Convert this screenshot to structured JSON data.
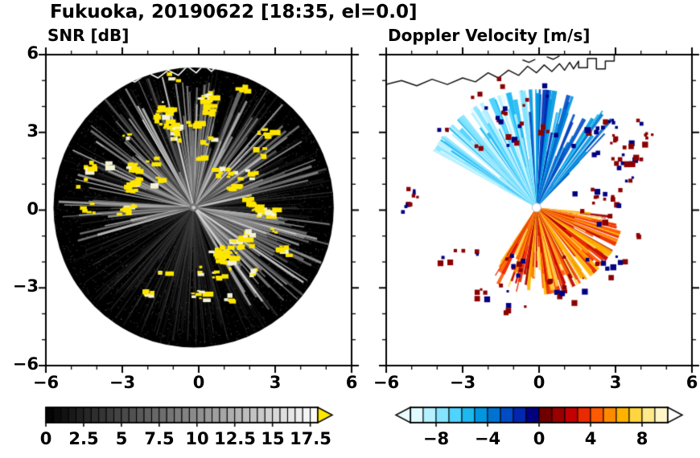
{
  "header": {
    "title": "Fukuoka, 20190622 [18:35, el=0.0]"
  },
  "panels": {
    "snr_subtitle": "SNR [dB]",
    "doppler_subtitle": "Doppler Velocity [m/s]"
  },
  "axes": {
    "x_tick_labels": [
      "−6",
      "−3",
      "0",
      "3",
      "6"
    ],
    "y_tick_labels": [
      "6",
      "3",
      "0",
      "−3",
      "−6"
    ],
    "xlim": [
      -6,
      6
    ],
    "ylim": [
      -6,
      6
    ]
  },
  "colorbars": {
    "snr": {
      "range": [
        0,
        18
      ],
      "segments": 36,
      "tick_labels": [
        "0",
        "2.5",
        "5",
        "7.5",
        "10",
        "12.5",
        "15",
        "17.5"
      ],
      "tick_values": [
        0,
        2.5,
        5,
        7.5,
        10,
        12.5,
        15,
        17.5
      ],
      "start_color": "#000000",
      "end_color": "#fafafa",
      "over_arrow_color": "#ffe600"
    },
    "doppler": {
      "range": [
        -10,
        10
      ],
      "tick_labels": [
        "−8",
        "−4",
        "0",
        "4",
        "8"
      ],
      "tick_values": [
        -8,
        -4,
        0,
        4,
        8
      ],
      "palette": [
        "#e0fbff",
        "#b4f0ff",
        "#84e4ff",
        "#4fd3ff",
        "#1db8f0",
        "#0096e0",
        "#0072d2",
        "#004cc4",
        "#0027ae",
        "#000080",
        "#700000",
        "#9a0000",
        "#c30000",
        "#ea2a00",
        "#ff5a00",
        "#ff8a00",
        "#ffb300",
        "#ffd640",
        "#ffe98a",
        "#fff6c8"
      ],
      "under_arrow_color": "#eafcff",
      "over_arrow_color": "#ffffff"
    }
  },
  "chart_data": {
    "type": "heatmap",
    "subtype": "radar-ppi-pair",
    "title": "Fukuoka, 20190622 [18:35, el=0.0]",
    "site": "Fukuoka",
    "date": "20190622",
    "time": "18:35",
    "elevation_deg": 0.0,
    "xlim": [
      -6,
      6
    ],
    "ylim": [
      -6,
      6
    ],
    "radar_radius_km": 5.5,
    "panels": [
      {
        "id": "snr",
        "title": "SNR [dB]",
        "colormap": "grayscale",
        "value_range": [
          0,
          18
        ],
        "over_color": "#ffe600",
        "background": "#000000",
        "center_km": [
          -0.2,
          0.1
        ],
        "features": {
          "bright_ray_sectors_deg": [
            [
              -80,
              80
            ],
            [
              95,
              150
            ],
            [
              253,
              275
            ]
          ],
          "clutter_zones": [
            {
              "bearing_deg": [
                -75,
                75
              ],
              "radius_km": [
                1.5,
                5.2
              ],
              "count": 26
            },
            {
              "bearing_deg": [
                75,
                110
              ],
              "radius_km": [
                1.5,
                3.5
              ],
              "count": 6
            },
            {
              "bearing_deg": [
                110,
                250
              ],
              "radius_km": [
                1.8,
                4.0
              ],
              "count": 18
            },
            {
              "bearing_deg": [
                255,
                300
              ],
              "radius_km": [
                2.5,
                5.0
              ],
              "count": 6
            }
          ]
        }
      },
      {
        "id": "doppler",
        "title": "Doppler Velocity [m/s]",
        "colormap": "cyan-blue-navy / darkred-red-orange-yellow",
        "value_range": [
          -10,
          10
        ],
        "background": "#ffffff",
        "center_km": [
          -0.1,
          0.1
        ],
        "features": {
          "negative_fan": {
            "bearing_deg": [
              -65,
              45
            ],
            "radius_km": [
              0.5,
              4.6
            ],
            "count": 175
          },
          "positive_fan": {
            "bearing_deg": [
              95,
              215
            ],
            "radius_km": [
              0.4,
              3.4
            ],
            "count": 230
          },
          "speckle_zones": [
            {
              "bearing_deg": [
                -50,
                70
              ],
              "radius_km": [
                2.8,
                5.4
              ],
              "count": 34
            },
            {
              "bearing_deg": [
                60,
                100
              ],
              "radius_km": [
                1.5,
                3.8
              ],
              "count": 12
            },
            {
              "bearing_deg": [
                100,
                260
              ],
              "radius_km": [
                2.0,
                4.2
              ],
              "count": 30
            },
            {
              "bearing_deg": [
                260,
                290
              ],
              "radius_km": [
                4.8,
                5.8
              ],
              "count": 6
            }
          ]
        }
      }
    ],
    "coastline_km": [
      [
        -6.0,
        4.85
      ],
      [
        -5.4,
        5.0
      ],
      [
        -4.8,
        4.8
      ],
      [
        -4.2,
        5.05
      ],
      [
        -3.6,
        4.85
      ],
      [
        -3.0,
        5.1
      ],
      [
        -2.5,
        4.95
      ],
      [
        -2.0,
        5.3
      ],
      [
        -1.6,
        5.1
      ],
      [
        -1.2,
        5.4
      ],
      [
        -0.8,
        5.2
      ],
      [
        -0.45,
        5.55
      ],
      [
        -0.1,
        5.3
      ],
      [
        0.2,
        5.6
      ],
      [
        0.5,
        5.35
      ],
      [
        0.8,
        5.65
      ],
      [
        1.0,
        5.4
      ],
      [
        1.2,
        5.7
      ],
      [
        1.35,
        5.45
      ],
      [
        1.55,
        5.75
      ],
      [
        1.55,
        5.5
      ],
      [
        1.9,
        5.5
      ],
      [
        1.9,
        5.85
      ],
      [
        2.25,
        5.85
      ],
      [
        2.25,
        5.45
      ],
      [
        2.6,
        5.45
      ],
      [
        2.6,
        5.75
      ],
      [
        2.95,
        5.75
      ],
      [
        2.95,
        6.1
      ]
    ],
    "coast_fragments_km": [
      [
        [
          0.3,
          5.92
        ],
        [
          0.55,
          5.82
        ],
        [
          0.8,
          5.95
        ]
      ],
      [
        [
          -0.65,
          5.8
        ],
        [
          -0.4,
          5.7
        ],
        [
          -0.15,
          5.82
        ]
      ]
    ]
  }
}
